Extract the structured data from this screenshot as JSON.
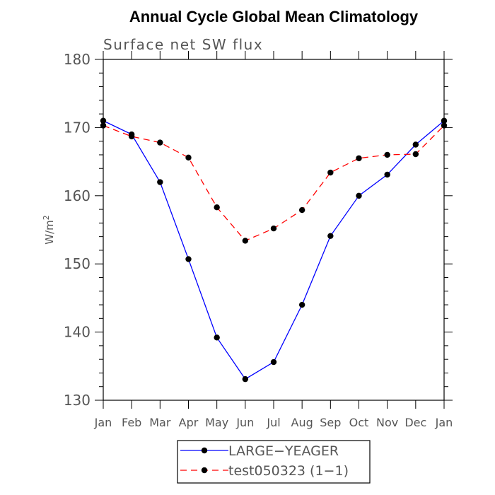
{
  "chart_data": {
    "type": "line",
    "title": "Annual Cycle Global Mean Climatology",
    "subtitle": "Surface net SW flux",
    "ylabel": "W/m",
    "ylabel_superscript": "2",
    "xlabel": "",
    "categories": [
      "Jan",
      "Feb",
      "Mar",
      "Apr",
      "May",
      "Jun",
      "Jul",
      "Aug",
      "Sep",
      "Oct",
      "Nov",
      "Dec",
      "Jan"
    ],
    "ylim": [
      130,
      180
    ],
    "yticks": [
      130,
      140,
      150,
      160,
      170,
      180
    ],
    "grid": false,
    "legend_position": "bottom",
    "series": [
      {
        "name": "LARGE−YEAGER",
        "color": "#0000ff",
        "dash": "solid",
        "marker": "circle",
        "values": [
          171.0,
          169.0,
          162.0,
          150.7,
          139.2,
          133.1,
          135.6,
          144.0,
          154.1,
          160.0,
          163.1,
          167.5,
          171.0
        ]
      },
      {
        "name": "test050323 (1−1)",
        "color": "#ff0000",
        "dash": "dashed",
        "marker": "circle",
        "values": [
          170.3,
          168.7,
          167.8,
          165.6,
          158.3,
          153.4,
          155.2,
          157.9,
          163.4,
          165.5,
          166.0,
          166.1,
          170.3
        ]
      }
    ]
  }
}
